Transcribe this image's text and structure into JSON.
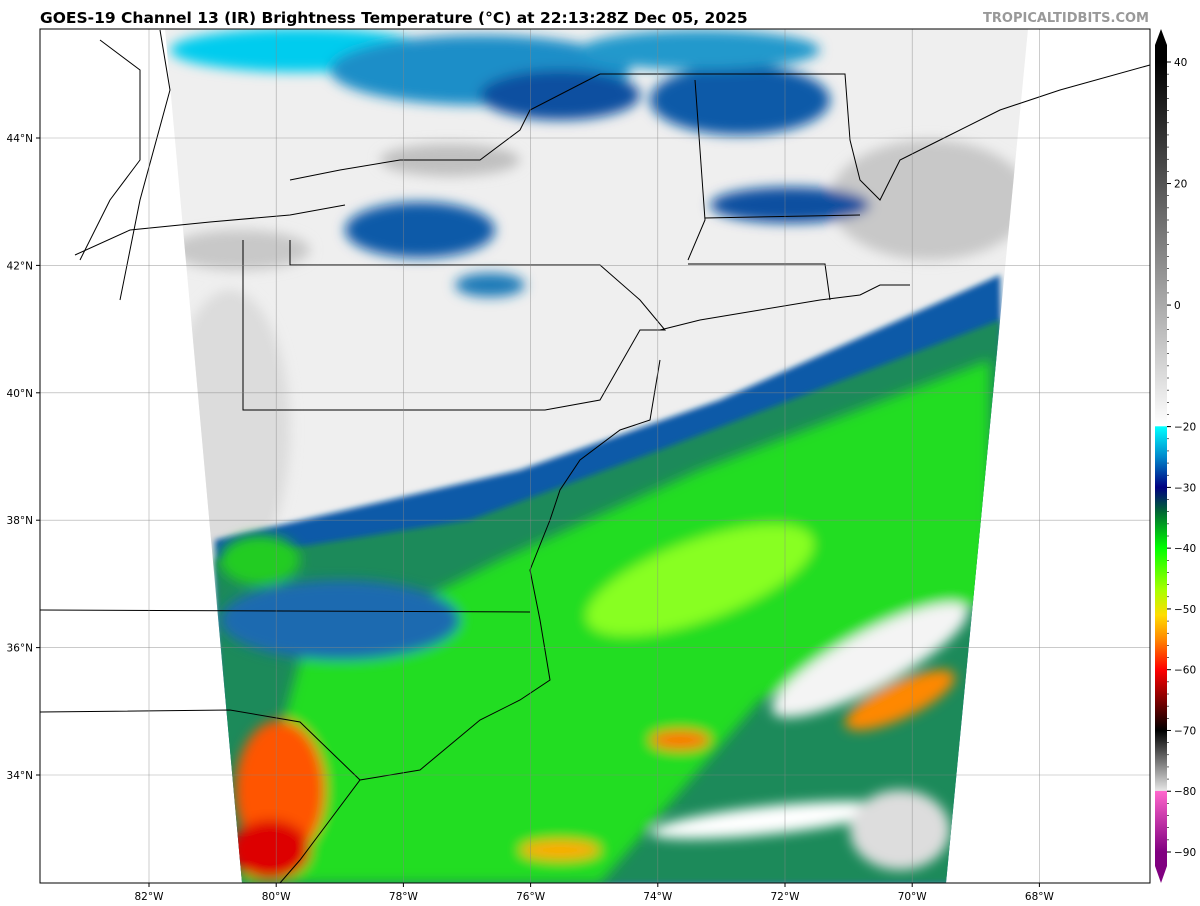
{
  "header": {
    "title": "GOES-19 Channel 13 (IR) Brightness Temperature (°C) at 22:13:28Z Dec 05, 2025",
    "watermark": "TROPICALTIDBITS.COM"
  },
  "map": {
    "lon_ticks": [
      {
        "value": -82,
        "label": "82°W"
      },
      {
        "value": -80,
        "label": "80°W"
      },
      {
        "value": -78,
        "label": "78°W"
      },
      {
        "value": -76,
        "label": "76°W"
      },
      {
        "value": -74,
        "label": "74°W"
      },
      {
        "value": -72,
        "label": "72°W"
      },
      {
        "value": -70,
        "label": "70°W"
      },
      {
        "value": -68,
        "label": "68°W"
      }
    ],
    "lat_ticks": [
      {
        "value": 44,
        "label": "44°N"
      },
      {
        "value": 42,
        "label": "42°N"
      },
      {
        "value": 40,
        "label": "40°N"
      },
      {
        "value": 38,
        "label": "38°N"
      },
      {
        "value": 36,
        "label": "36°N"
      },
      {
        "value": 34,
        "label": "34°N"
      }
    ],
    "gridlines": true
  },
  "colorbar": {
    "ticks": [
      {
        "value": 40,
        "label": "40"
      },
      {
        "value": 20,
        "label": "20"
      },
      {
        "value": 0,
        "label": "0"
      },
      {
        "value": -20,
        "label": "−20"
      },
      {
        "value": -30,
        "label": "−30"
      },
      {
        "value": -40,
        "label": "−40"
      },
      {
        "value": -50,
        "label": "−50"
      },
      {
        "value": -60,
        "label": "−60"
      },
      {
        "value": -70,
        "label": "−70"
      },
      {
        "value": -80,
        "label": "−80"
      },
      {
        "value": -90,
        "label": "−90"
      }
    ],
    "stops": [
      {
        "value": 40,
        "color": "#000000"
      },
      {
        "value": -19.9,
        "color": "#ffffff"
      },
      {
        "value": -20,
        "color": "#00ffff"
      },
      {
        "value": -25,
        "color": "#0088cc"
      },
      {
        "value": -30,
        "color": "#000080"
      },
      {
        "value": -34,
        "color": "#006633"
      },
      {
        "value": -40,
        "color": "#00ff00"
      },
      {
        "value": -47,
        "color": "#aaff00"
      },
      {
        "value": -51,
        "color": "#ffdd00"
      },
      {
        "value": -55,
        "color": "#ff8800"
      },
      {
        "value": -60,
        "color": "#ff0000"
      },
      {
        "value": -66,
        "color": "#660000"
      },
      {
        "value": -70,
        "color": "#000000"
      },
      {
        "value": -79.9,
        "color": "#e6e6e6"
      },
      {
        "value": -80,
        "color": "#ff66cc"
      },
      {
        "value": -90,
        "color": "#800080"
      }
    ]
  }
}
